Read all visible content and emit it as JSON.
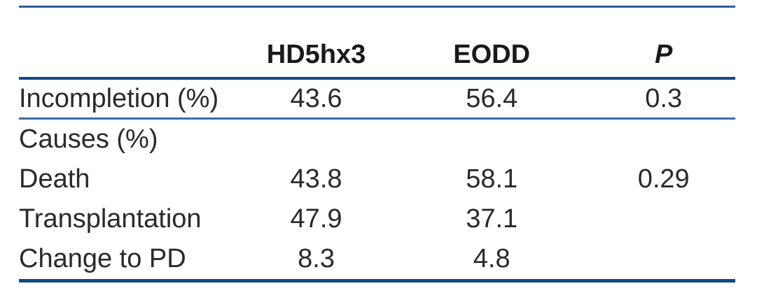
{
  "table": {
    "columns": [
      {
        "label": ""
      },
      {
        "label": "HD5hx3"
      },
      {
        "label": "EODD"
      },
      {
        "label": "P"
      }
    ],
    "rows": [
      {
        "label": "Incompletion (%)",
        "hd5hx3": "43.6",
        "eodd": "56.4",
        "p": "0.3"
      },
      {
        "label": "Causes (%)",
        "hd5hx3": "",
        "eodd": "",
        "p": ""
      },
      {
        "label": "Death",
        "hd5hx3": "43.8",
        "eodd": "58.1",
        "p": "0.29"
      },
      {
        "label": "Transplantation",
        "hd5hx3": "47.9",
        "eodd": "37.1",
        "p": ""
      },
      {
        "label": "Change to PD",
        "hd5hx3": "8.3",
        "eodd": "4.8",
        "p": ""
      }
    ],
    "colors": {
      "rule_dark": "#0f4a84",
      "rule_light": "#3b6aa5",
      "rule_top": "#2a5d9c",
      "text": "#2b2a28"
    }
  }
}
